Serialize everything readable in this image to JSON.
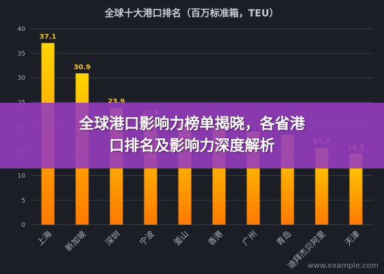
{
  "chart_data": {
    "type": "bar",
    "title": "全球十大港口排名（百万标准箱，TEU）",
    "categories": [
      "上海",
      "新加坡",
      "深圳",
      "宁波",
      "釜山",
      "香港",
      "广州",
      "青岛",
      "迪拜杰贝阿里",
      "天津"
    ],
    "values": [
      37.1,
      30.9,
      23.9,
      21.6,
      21.0,
      19.8,
      19.0,
      18.3,
      15.7,
      14.5
    ],
    "data_labels": [
      "37.1",
      "30.9",
      "23.9",
      "21.6",
      "",
      "",
      "",
      "",
      "15.7",
      "14.5"
    ],
    "ylim": [
      0,
      40
    ],
    "yticks": [
      0,
      5,
      10,
      15,
      20,
      25,
      30,
      35,
      40
    ],
    "grid": true,
    "colors": {
      "bar_top": "#ffd400",
      "bar_bottom": "#ff7a00",
      "label": "#f5c518",
      "grid": "#3a3e48",
      "axis_text": "#aab0bb"
    }
  },
  "banner": {
    "line1": "全球港口影响力榜单揭晓，各省港",
    "line2": "口排名及影响力深度解析"
  },
  "watermark": "www.example.com"
}
